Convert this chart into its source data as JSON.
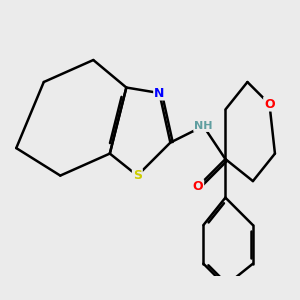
{
  "background_color": "#ebebeb",
  "bond_color": "#000000",
  "bond_width": 1.8,
  "atom_colors": {
    "N": "#0000ff",
    "O": "#ff0000",
    "S": "#cccc00",
    "C": "#000000",
    "H": "#5f9ea0"
  },
  "font_size_atom": 9,
  "font_size_H": 8,
  "xlim": [
    -0.5,
    9.5
  ],
  "ylim": [
    0.5,
    9.0
  ],
  "figsize": [
    3.0,
    3.0
  ],
  "dpi": 100
}
